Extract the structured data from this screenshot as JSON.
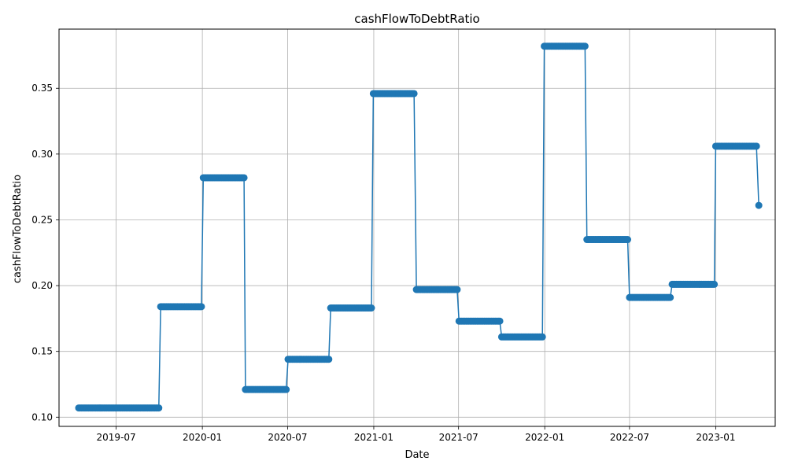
{
  "chart_data": {
    "type": "line",
    "title": "cashFlowToDebtRatio",
    "xlabel": "Date",
    "ylabel": "cashFlowToDebtRatio",
    "x_range": [
      "2019-03-01",
      "2023-05-08"
    ],
    "ylim": [
      0.093,
      0.395
    ],
    "y_ticks": [
      0.1,
      0.15,
      0.2,
      0.25,
      0.3,
      0.35
    ],
    "y_tick_labels": [
      "0.10",
      "0.15",
      "0.20",
      "0.25",
      "0.30",
      "0.35"
    ],
    "x_ticks": [
      "2019-07-01",
      "2020-01-01",
      "2020-07-01",
      "2021-01-01",
      "2021-07-01",
      "2022-01-01",
      "2022-07-01",
      "2023-01-01"
    ],
    "x_tick_labels": [
      "2019-07",
      "2020-01",
      "2020-07",
      "2021-01",
      "2021-07",
      "2022-01",
      "2022-07",
      "2023-01"
    ],
    "grid": true,
    "line_color": "#1f77b4",
    "marker": "circle",
    "point_interval_days": 3,
    "steps": [
      {
        "start": "2019-04-12",
        "end": "2019-10-01",
        "value": 0.107
      },
      {
        "start": "2019-10-04",
        "end": "2019-12-31",
        "value": 0.184
      },
      {
        "start": "2020-01-03",
        "end": "2020-03-30",
        "value": 0.282
      },
      {
        "start": "2020-04-02",
        "end": "2020-06-29",
        "value": 0.121
      },
      {
        "start": "2020-07-02",
        "end": "2020-09-28",
        "value": 0.144
      },
      {
        "start": "2020-10-01",
        "end": "2020-12-28",
        "value": 0.183
      },
      {
        "start": "2020-12-31",
        "end": "2021-03-30",
        "value": 0.346
      },
      {
        "start": "2021-04-02",
        "end": "2021-06-29",
        "value": 0.197
      },
      {
        "start": "2021-07-02",
        "end": "2021-09-28",
        "value": 0.173
      },
      {
        "start": "2021-10-01",
        "end": "2021-12-28",
        "value": 0.161
      },
      {
        "start": "2021-12-31",
        "end": "2022-03-29",
        "value": 0.382
      },
      {
        "start": "2022-04-01",
        "end": "2022-06-28",
        "value": 0.235
      },
      {
        "start": "2022-07-01",
        "end": "2022-09-27",
        "value": 0.191
      },
      {
        "start": "2022-09-30",
        "end": "2022-12-29",
        "value": 0.201
      },
      {
        "start": "2023-01-01",
        "end": "2023-03-31",
        "value": 0.306
      },
      {
        "start": "2023-04-03",
        "end": "2023-04-03",
        "value": 0.261
      }
    ]
  }
}
